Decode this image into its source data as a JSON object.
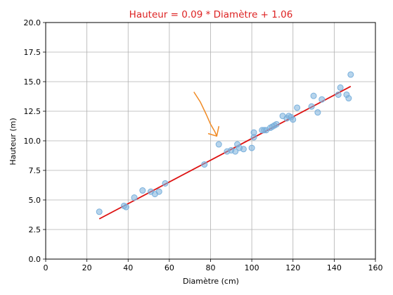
{
  "chart_data": {
    "type": "scatter",
    "title": "Hauteur = 0.09 * Diamètre + 1.06",
    "title_color": "#dd2222",
    "xlabel": "Diamètre (cm)",
    "ylabel": "Hauteur (m)",
    "xlim": [
      0,
      160
    ],
    "ylim": [
      0,
      20
    ],
    "xticks": [
      0,
      20,
      40,
      60,
      80,
      100,
      120,
      140,
      160
    ],
    "yticks": [
      0.0,
      2.5,
      5.0,
      7.5,
      10.0,
      12.5,
      15.0,
      17.5,
      20.0
    ],
    "xtick_labels": [
      "0",
      "20",
      "40",
      "60",
      "80",
      "100",
      "120",
      "140",
      "160"
    ],
    "ytick_labels": [
      "0.0",
      "2.5",
      "5.0",
      "7.5",
      "10.0",
      "12.5",
      "15.0",
      "17.5",
      "20.0"
    ],
    "grid": true,
    "series": [
      {
        "type": "scatter",
        "color": "#7ab0dc",
        "points": [
          [
            26,
            4.0
          ],
          [
            38,
            4.5
          ],
          [
            39,
            4.4
          ],
          [
            43,
            5.2
          ],
          [
            47,
            5.8
          ],
          [
            51,
            5.7
          ],
          [
            53,
            5.5
          ],
          [
            55,
            5.7
          ],
          [
            58,
            6.4
          ],
          [
            77,
            8.0
          ],
          [
            84,
            9.7
          ],
          [
            88,
            9.1
          ],
          [
            90,
            9.2
          ],
          [
            92,
            9.1
          ],
          [
            93,
            9.7
          ],
          [
            94,
            9.4
          ],
          [
            96,
            9.3
          ],
          [
            100,
            9.4
          ],
          [
            101,
            10.3
          ],
          [
            101,
            10.7
          ],
          [
            105,
            10.9
          ],
          [
            106,
            10.9
          ],
          [
            107,
            10.9
          ],
          [
            109,
            11.1
          ],
          [
            110,
            11.2
          ],
          [
            111,
            11.3
          ],
          [
            112,
            11.4
          ],
          [
            115,
            12.1
          ],
          [
            117,
            11.9
          ],
          [
            118,
            12.1
          ],
          [
            119,
            12.0
          ],
          [
            120,
            11.8
          ],
          [
            122,
            12.8
          ],
          [
            129,
            12.9
          ],
          [
            130,
            13.8
          ],
          [
            132,
            12.4
          ],
          [
            134,
            13.5
          ],
          [
            142,
            13.9
          ],
          [
            143,
            14.5
          ],
          [
            146,
            13.9
          ],
          [
            147,
            13.6
          ],
          [
            148,
            15.6
          ]
        ]
      },
      {
        "type": "line",
        "color": "#dd1111",
        "points": [
          [
            26,
            3.4
          ],
          [
            148,
            14.6
          ]
        ]
      }
    ],
    "annotations": [
      {
        "type": "hand-drawn-arrow",
        "color": "#f08a24",
        "points": [
          [
            72,
            14.1
          ],
          [
            75,
            13.3
          ],
          [
            78,
            12.2
          ],
          [
            80,
            11.4
          ],
          [
            82,
            10.8
          ],
          [
            83,
            10.4
          ]
        ],
        "head": [
          [
            79,
            10.6
          ],
          [
            83,
            10.4
          ],
          [
            84,
            11.2
          ]
        ]
      }
    ]
  }
}
